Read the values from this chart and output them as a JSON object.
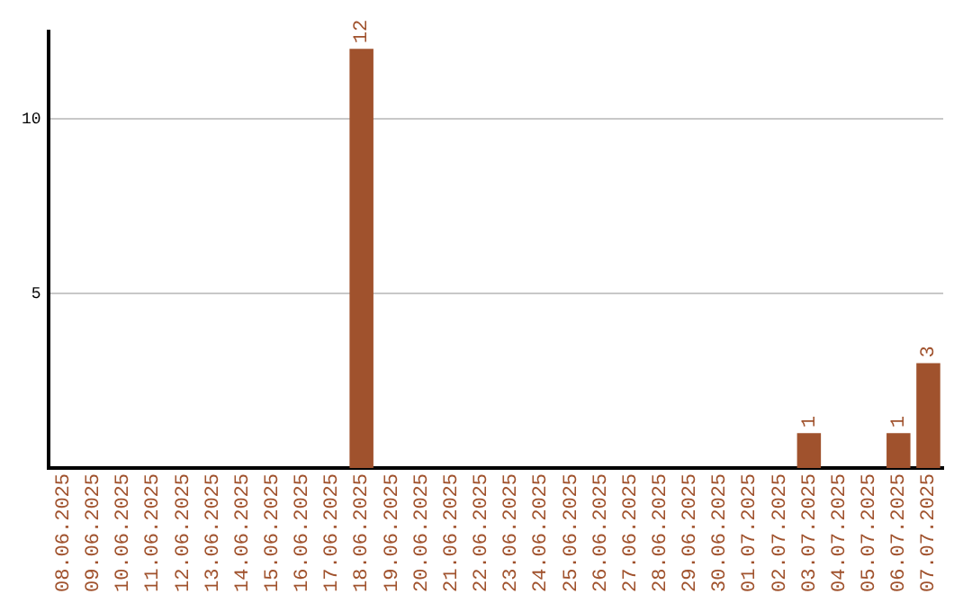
{
  "chart_data": {
    "type": "bar",
    "categories": [
      "08.06.2025",
      "09.06.2025",
      "10.06.2025",
      "11.06.2025",
      "12.06.2025",
      "13.06.2025",
      "14.06.2025",
      "15.06.2025",
      "16.06.2025",
      "17.06.2025",
      "18.06.2025",
      "19.06.2025",
      "20.06.2025",
      "21.06.2025",
      "22.06.2025",
      "23.06.2025",
      "24.06.2025",
      "25.06.2025",
      "26.06.2025",
      "27.06.2025",
      "28.06.2025",
      "29.06.2025",
      "30.06.2025",
      "01.07.2025",
      "02.07.2025",
      "03.07.2025",
      "04.07.2025",
      "05.07.2025",
      "06.07.2025",
      "07.07.2025"
    ],
    "values": [
      0,
      0,
      0,
      0,
      0,
      0,
      0,
      0,
      0,
      0,
      12,
      0,
      0,
      0,
      0,
      0,
      0,
      0,
      0,
      0,
      0,
      0,
      0,
      0,
      0,
      1,
      0,
      0,
      1,
      3
    ],
    "value_labels": [
      null,
      null,
      null,
      null,
      null,
      null,
      null,
      null,
      null,
      null,
      "12",
      null,
      null,
      null,
      null,
      null,
      null,
      null,
      null,
      null,
      null,
      null,
      null,
      null,
      null,
      "1",
      null,
      null,
      "1",
      "3"
    ],
    "color": "#a0522d",
    "ylim": [
      0,
      12.5
    ],
    "yticks": [
      5,
      10
    ],
    "grid": "y",
    "legend": false
  }
}
